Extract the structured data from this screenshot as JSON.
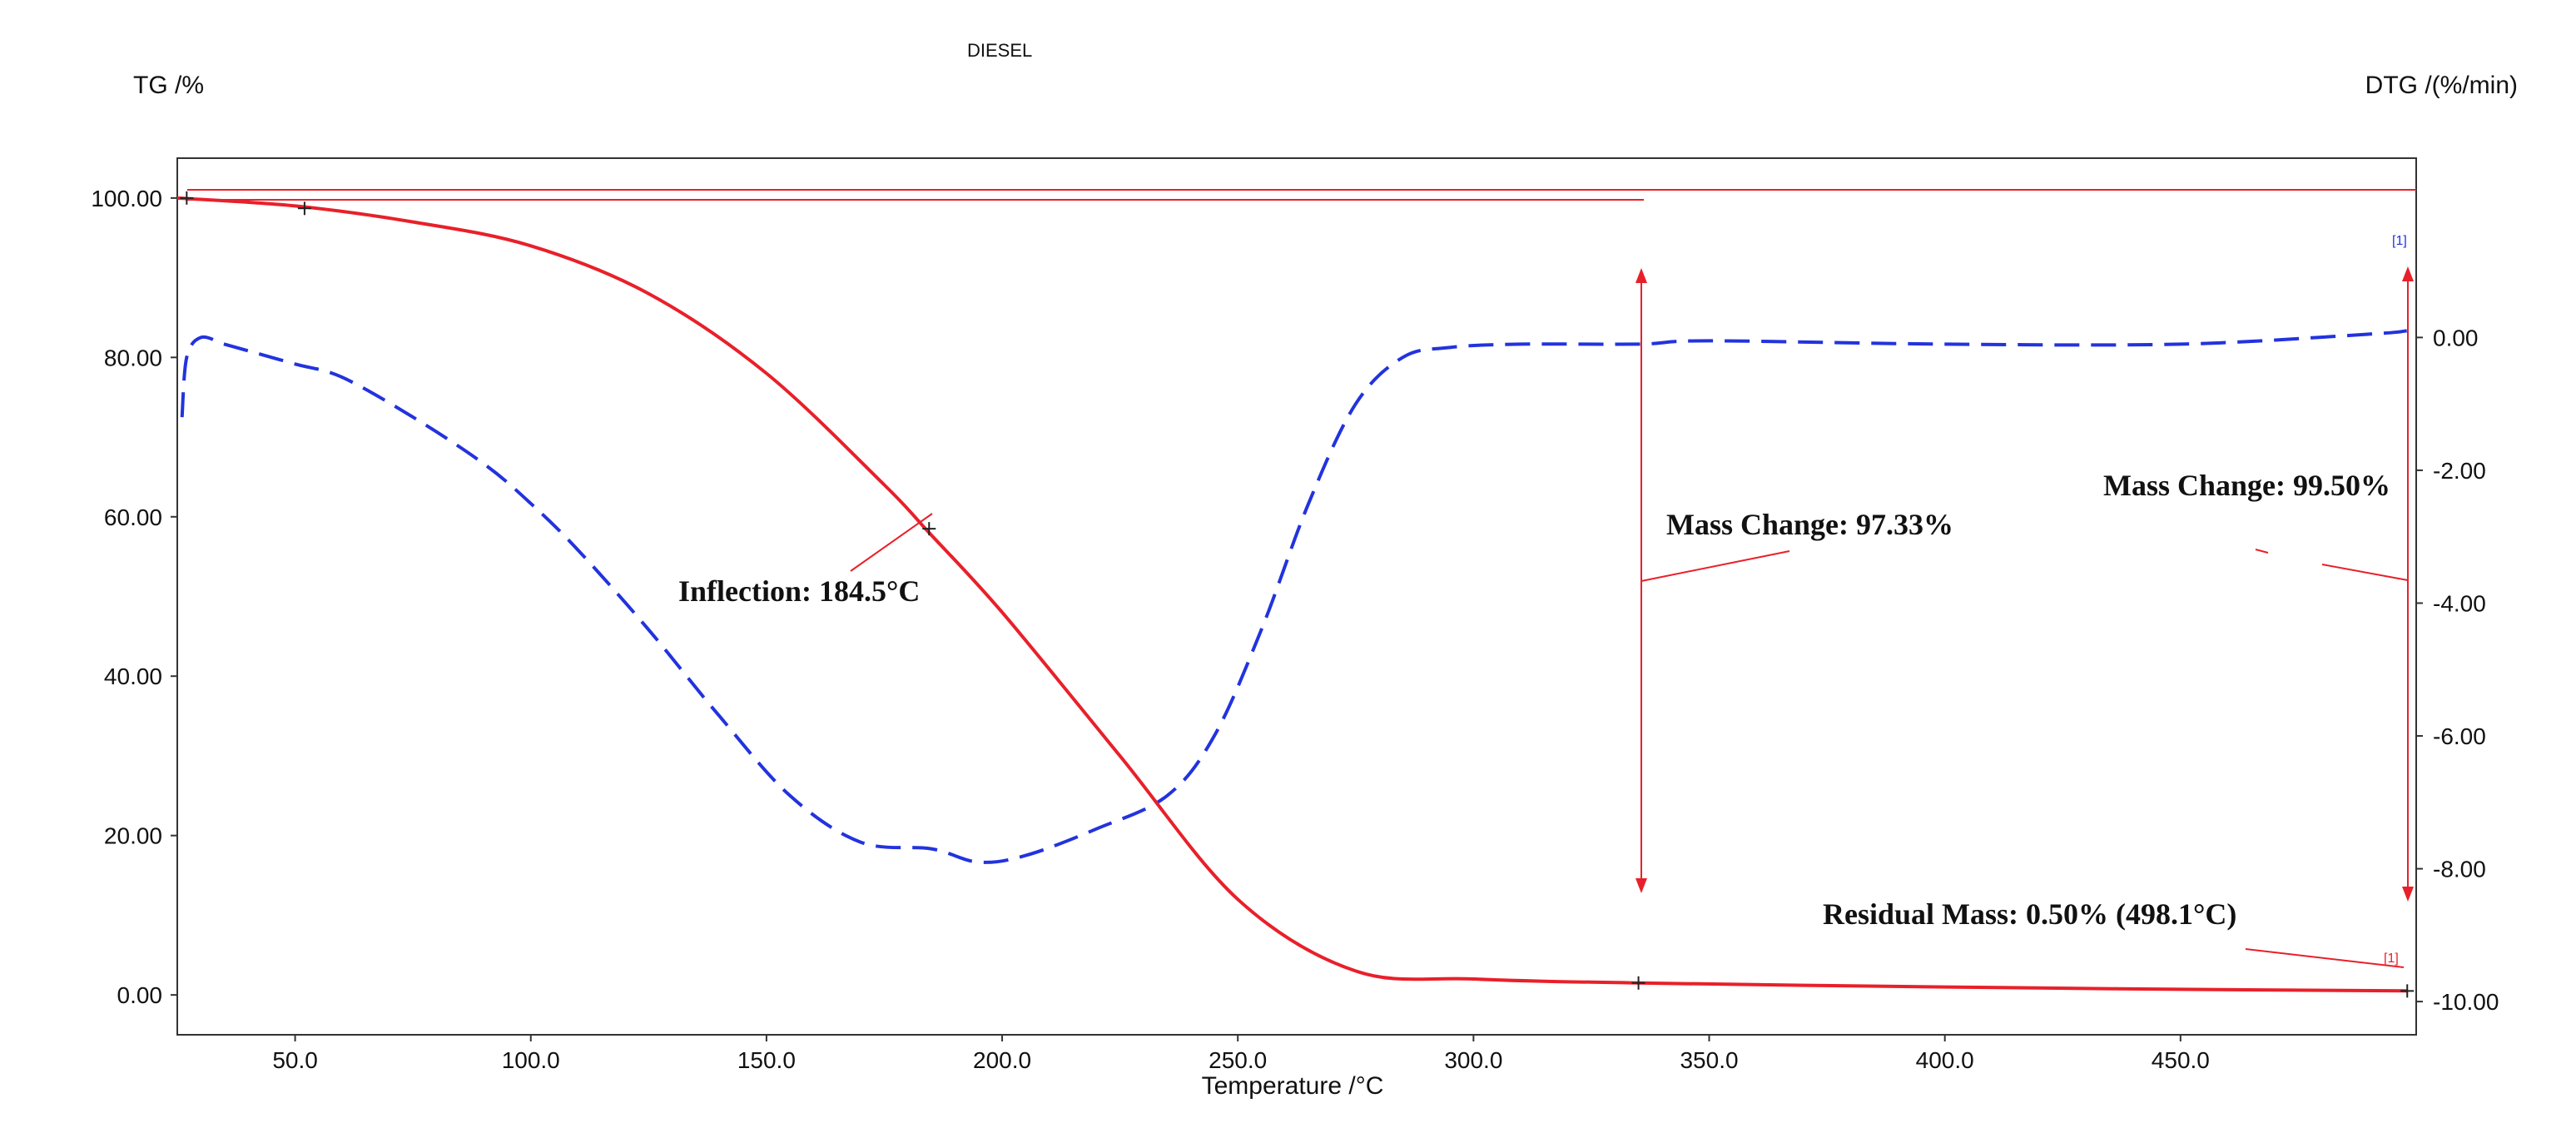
{
  "chart_data": {
    "type": "line",
    "title": "DIESEL",
    "xlabel": "Temperature /°C",
    "ylabel_left": "TG /%",
    "ylabel_right": "DTG /(%/min)",
    "xlim": [
      25,
      500
    ],
    "ylim_left": [
      -5,
      105
    ],
    "ylim_right": [
      -10.5,
      2.7
    ],
    "x_ticks": [
      50,
      100,
      150,
      200,
      250,
      300,
      350,
      400,
      450
    ],
    "x_tick_labels": [
      "50.0",
      "100.0",
      "150.0",
      "200.0",
      "250.0",
      "300.0",
      "350.0",
      "400.0",
      "450.0"
    ],
    "y_left_ticks": [
      0,
      20,
      40,
      60,
      80,
      100
    ],
    "y_left_tick_labels": [
      "0.00",
      "20.00",
      "40.00",
      "60.00",
      "80.00",
      "100.00"
    ],
    "y_right_ticks": [
      0,
      -2,
      -4,
      -6,
      -8,
      -10
    ],
    "y_right_tick_labels": [
      "0.00",
      "-2.00",
      "-4.00",
      "-6.00",
      "-8.00",
      "-10.00"
    ],
    "grid": false,
    "legend": "none",
    "colors": {
      "tg": "#e8202a",
      "dtg": "#2233dd",
      "annotation": "#e8202a",
      "text": "#111111"
    },
    "series": [
      {
        "axis": "left",
        "style": "solid",
        "x": [
          25,
          50,
          75,
          100,
          125,
          150,
          175,
          184.5,
          200,
          225,
          250,
          275,
          300,
          335,
          400,
          450,
          498
        ],
        "values": [
          100,
          99,
          97,
          94,
          88,
          78,
          64,
          58,
          48,
          30,
          12,
          3,
          2,
          1.5,
          1,
          0.7,
          0.5
        ]
      },
      {
        "axis": "right",
        "style": "dashed",
        "x": [
          26,
          27,
          30,
          35,
          40,
          50,
          60,
          75,
          90,
          100,
          110,
          125,
          140,
          155,
          170,
          185,
          195,
          205,
          220,
          235,
          245,
          255,
          265,
          275,
          285,
          295,
          310,
          335,
          350,
          400,
          450,
          490,
          498
        ],
        "values": [
          -1.2,
          -0.3,
          0,
          -0.1,
          -0.2,
          -0.4,
          -0.6,
          -1.2,
          -1.9,
          -2.5,
          -3.2,
          -4.4,
          -5.7,
          -6.9,
          -7.6,
          -7.7,
          -7.9,
          -7.8,
          -7.4,
          -6.9,
          -6.0,
          -4.4,
          -2.5,
          -1.0,
          -0.3,
          -0.15,
          -0.1,
          -0.1,
          -0.05,
          -0.1,
          -0.1,
          0.05,
          0.1
        ]
      }
    ],
    "points": [
      {
        "series": "tg",
        "x": 27,
        "y": 100
      },
      {
        "series": "tg",
        "x": 52,
        "y": 98.7
      },
      {
        "series": "tg",
        "x": 184.5,
        "y": 58.5
      },
      {
        "series": "tg",
        "x": 335,
        "y": 1.5
      },
      {
        "series": "tg",
        "x": 498.1,
        "y": 0.5
      }
    ],
    "annotations": {
      "inflection": "Inflection: 184.5°C",
      "mass_change_1": "Mass Change: 97.33%",
      "mass_change_2": "Mass Change: 99.50%",
      "residual": "Residual Mass: 0.50% (498.1°C)",
      "marker_blue": "[1]",
      "marker_red": "[1]"
    }
  }
}
